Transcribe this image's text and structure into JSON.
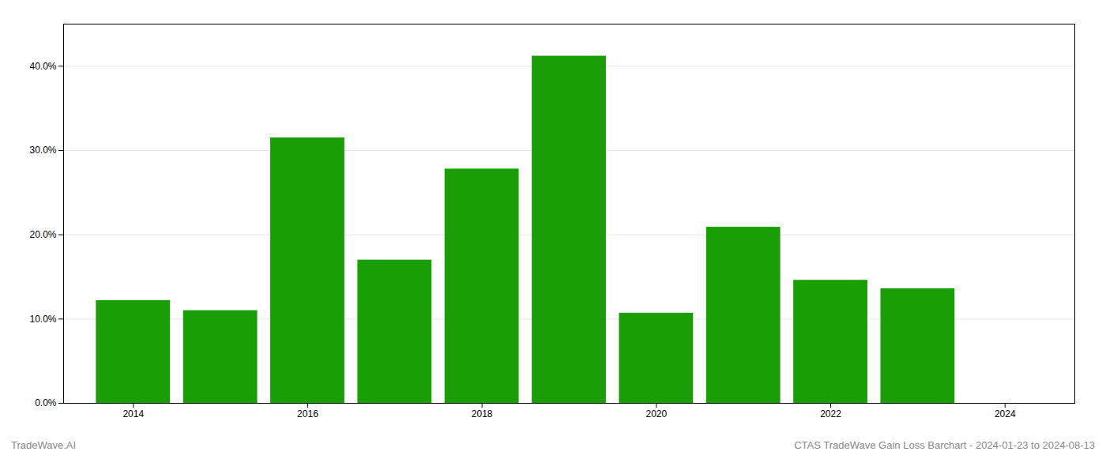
{
  "chart_data": {
    "type": "bar",
    "x": [
      2014,
      2015,
      2016,
      2017,
      2018,
      2019,
      2020,
      2021,
      2022,
      2023
    ],
    "values": [
      0.122,
      0.11,
      0.315,
      0.17,
      0.278,
      0.412,
      0.107,
      0.209,
      0.146,
      0.136
    ],
    "color": "#1a9e06",
    "xlim": [
      2013.2,
      2024.8
    ],
    "xticks": [
      2014,
      2016,
      2018,
      2020,
      2022,
      2024
    ],
    "ylim": [
      0,
      0.45
    ],
    "yticks": [
      {
        "value": 0.0,
        "label": "0.0%"
      },
      {
        "value": 0.1,
        "label": "10.0%"
      },
      {
        "value": 0.2,
        "label": "20.0%"
      },
      {
        "value": 0.3,
        "label": "30.0%"
      },
      {
        "value": 0.4,
        "label": "40.0%"
      }
    ],
    "grid": true,
    "annotations": [
      "TradeWave.AI",
      "CTAS TradeWave Gain Loss Barchart - 2024-01-23 to 2024-08-13"
    ]
  }
}
